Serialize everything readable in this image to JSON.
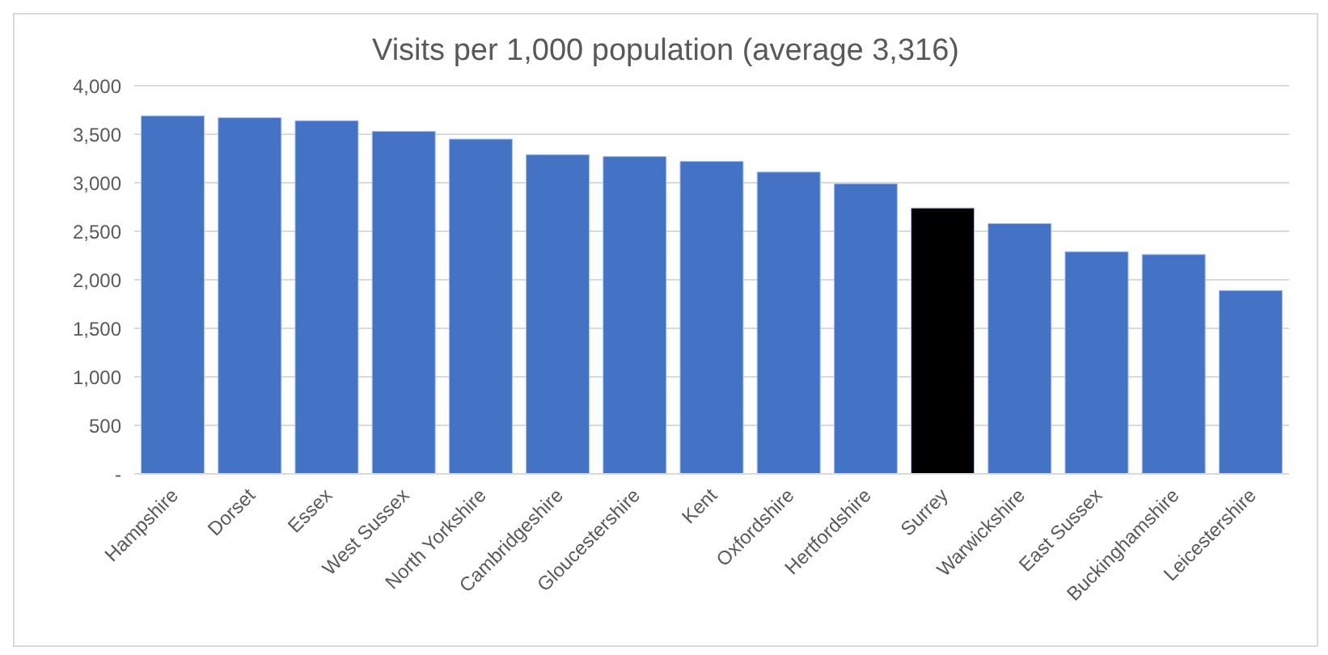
{
  "chart_data": {
    "type": "bar",
    "title": "Visits per 1,000 population (average 3,316)",
    "categories": [
      "Hampshire",
      "Dorset",
      "Essex",
      "West Sussex",
      "North Yorkshire",
      "Cambridgeshire",
      "Gloucestershire",
      "Kent",
      "Oxfordshire",
      "Hertfordshire",
      "Surrey",
      "Warwickshire",
      "East Sussex",
      "Buckinghamshire",
      "Leicestershire"
    ],
    "values": [
      3690,
      3670,
      3640,
      3530,
      3450,
      3290,
      3270,
      3220,
      3110,
      2990,
      2740,
      2580,
      2290,
      2260,
      1890
    ],
    "colors": [
      "#4472c4",
      "#4472c4",
      "#4472c4",
      "#4472c4",
      "#4472c4",
      "#4472c4",
      "#4472c4",
      "#4472c4",
      "#4472c4",
      "#4472c4",
      "#000000",
      "#4472c4",
      "#4472c4",
      "#4472c4",
      "#4472c4"
    ],
    "ylim": [
      0,
      4000
    ],
    "yticks": [
      {
        "value": 0,
        "label": "-"
      },
      {
        "value": 500,
        "label": "500"
      },
      {
        "value": 1000,
        "label": "1,000"
      },
      {
        "value": 1500,
        "label": "1,500"
      },
      {
        "value": 2000,
        "label": "2,000"
      },
      {
        "value": 2500,
        "label": "2,500"
      },
      {
        "value": 3000,
        "label": "3,000"
      },
      {
        "value": 3500,
        "label": "3,500"
      },
      {
        "value": 4000,
        "label": "4,000"
      }
    ],
    "grid": "y"
  }
}
